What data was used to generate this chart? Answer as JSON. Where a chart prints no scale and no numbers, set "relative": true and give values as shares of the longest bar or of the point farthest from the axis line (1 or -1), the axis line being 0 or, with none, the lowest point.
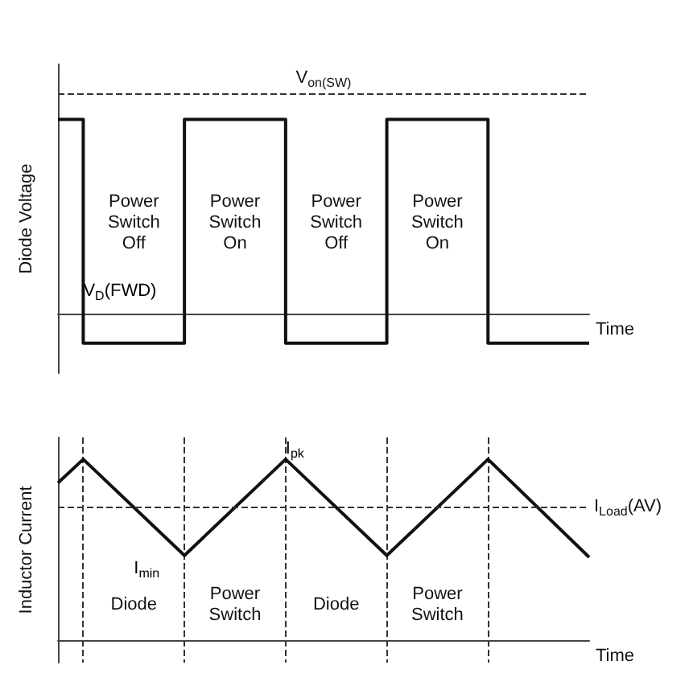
{
  "chart_data": [
    {
      "type": "step",
      "ylabel": "Diode Voltage",
      "xlabel": "Time",
      "relative": true,
      "categories": [
        null,
        null,
        null,
        null,
        null,
        null,
        null,
        null,
        null,
        null,
        null,
        null,
        null,
        null,
        null,
        null,
        null,
        null,
        null,
        null,
        null,
        null
      ],
      "grid": false,
      "marker": "none",
      "series": [
        {
          "color": "#111111",
          "values": [
            1,
            -0.15,
            -0.15,
            -0.15,
            -0.15,
            1,
            1,
            1,
            1,
            -0.15,
            -0.15,
            -0.15,
            -0.15,
            1,
            1,
            1,
            1,
            -0.15,
            -0.15,
            -0.15,
            -0.15,
            -0.15
          ]
        }
      ],
      "ref_lines": [
        {
          "axis": "y",
          "value": 1.13,
          "label": "V$_{on(SW)}$",
          "line_style": "dashed"
        }
      ],
      "annotations": [
        "Power Switch Off",
        "Power Switch On",
        "Power Switch Off",
        "Power Switch On",
        "V$_{D}$(FWD)"
      ]
    },
    {
      "type": "line",
      "ylabel": "Inductor Current",
      "xlabel": "Time",
      "relative": true,
      "categories": [
        null,
        null,
        null,
        null,
        null,
        null,
        null,
        null,
        null,
        null,
        null,
        null,
        null,
        null,
        null,
        null,
        null,
        null,
        null,
        null,
        null,
        null
      ],
      "grid": "x",
      "marker": "none",
      "series": [
        {
          "color": "#111111",
          "values": [
            0.87,
            1,
            null,
            null,
            null,
            0.47,
            null,
            null,
            null,
            1,
            null,
            null,
            null,
            0.47,
            null,
            null,
            null,
            1,
            null,
            null,
            null,
            0.46
          ]
        }
      ],
      "ref_lines": [
        {
          "axis": "y",
          "value": 0.74,
          "label": "I$_{Load}$(AV)",
          "line_style": "dashed"
        }
      ],
      "annotations": [
        "I$_{pk}$",
        "I$_{min}$",
        "Diode",
        "Power Switch",
        "Diode",
        "Power Switch"
      ]
    }
  ]
}
